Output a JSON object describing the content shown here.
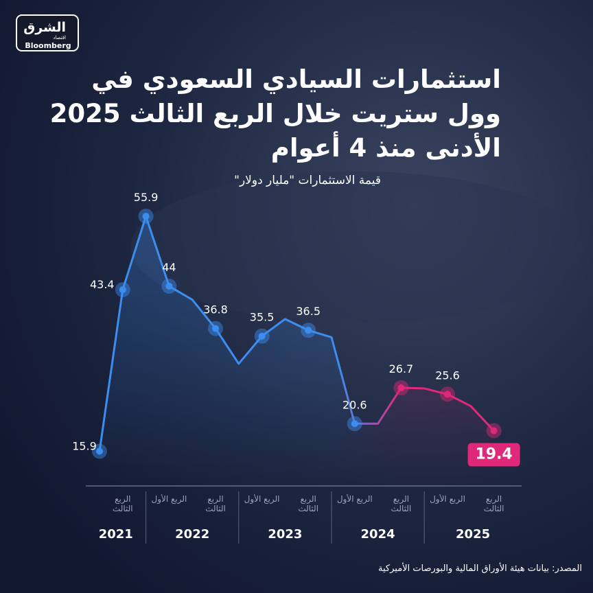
{
  "logo": {
    "brand": "الشرق",
    "sub": "اقتصاد",
    "partner": "Bloomberg"
  },
  "chart_data": {
    "type": "line",
    "title_lines": [
      "استثمارات السيادي السعودي في",
      "وول ستريت خلال الربع الثالث 2025",
      "الأدنى منذ 4 أعوام"
    ],
    "subtitle": "قيمة الاستثمارات \"مليار دولار\"",
    "categories": [
      null,
      "الربع الثالث",
      null,
      "الربع الأول",
      null,
      "الربع الثالث",
      null,
      "الربع الأول",
      null,
      "الربع الثالث",
      null,
      "الربع الأول",
      null,
      "الربع الثالث",
      null,
      "الربع الأول",
      null,
      "الربع الثالث"
    ],
    "x_groups": [
      {
        "label": "2021",
        "count": 3
      },
      {
        "label": "2022",
        "count": 4
      },
      {
        "label": "2023",
        "count": 4
      },
      {
        "label": "2024",
        "count": 4
      },
      {
        "label": "2025",
        "count": 3
      }
    ],
    "series": [
      {
        "name": "قيمة الاستثمارات",
        "colors": [
          "#3b8ef0",
          "#e0287a"
        ],
        "values": [
          15.9,
          43.4,
          55.9,
          44,
          41.7,
          36.8,
          30.8,
          35.5,
          38.4,
          36.5,
          35.3,
          20.6,
          20.6,
          26.7,
          26.6,
          25.6,
          23.6,
          19.4
        ],
        "value_labels": [
          "15.9",
          "43.4",
          "55.9",
          "44",
          null,
          "36.8",
          null,
          "35.5",
          null,
          "36.5",
          null,
          "20.6",
          null,
          "26.7",
          null,
          "25.6",
          null,
          "19.4"
        ]
      }
    ],
    "ylim": [
      10,
      60
    ],
    "source": "المصدر: بيانات هيئة الأوراق المالية والبورصات الأميركية"
  }
}
